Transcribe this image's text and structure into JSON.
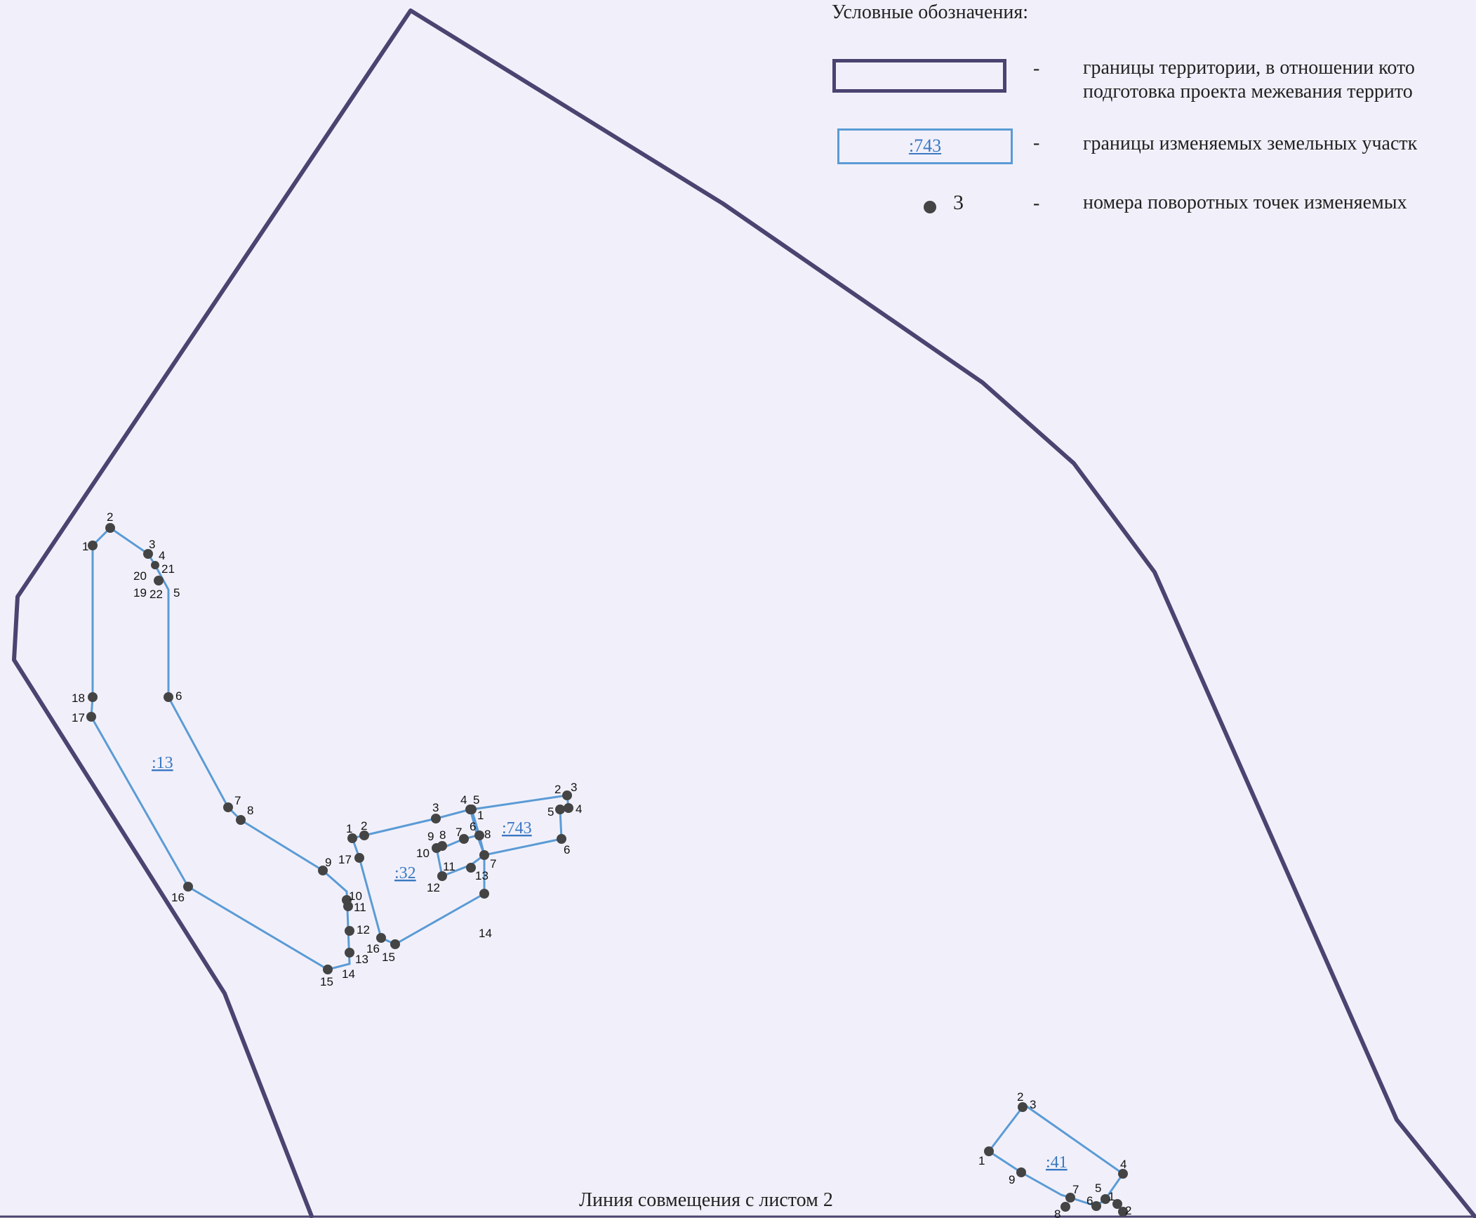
{
  "legend": {
    "title": "Условные обозначения:",
    "dash": "-",
    "item_border_line1": "границы территории, в отношении кото",
    "item_border_line2": "подготовка проекта межевания террито",
    "item_parcel_sample": ":743",
    "item_parcel_text": "границы изменяемых земельных участк",
    "item_point_sample": "3",
    "item_point_text": "номера поворотных точек изменяемых"
  },
  "sheet_line_label": "Линия совмещения с листом 2",
  "colors": {
    "territory": "#4b4370",
    "parcel": "#5b9bd5",
    "point": "#444444",
    "background": "#f1f0fa"
  },
  "icons": {
    "point_marker": "filled-circle"
  },
  "parcels": [
    {
      "id": ":13",
      "label": ":13",
      "points": [
        "1",
        "2",
        "3",
        "4",
        "21",
        "20",
        "19",
        "22",
        "5",
        "6",
        "7",
        "8",
        "9",
        "10",
        "11",
        "12",
        "13",
        "14",
        "15",
        "16",
        "17",
        "18"
      ]
    },
    {
      "id": ":32",
      "label": ":32",
      "points": [
        "1",
        "2",
        "3",
        "4",
        "5",
        "6",
        "7",
        "8",
        "9",
        "10",
        "11",
        "12",
        "13",
        "14",
        "15",
        "16",
        "17"
      ]
    },
    {
      "id": ":743",
      "label": ":743",
      "points": [
        "1",
        "2",
        "3",
        "4",
        "5",
        "6",
        "7",
        "8"
      ]
    },
    {
      "id": ":41",
      "label": ":41",
      "points": [
        "1",
        "2",
        "3",
        "4",
        "5",
        "6",
        "7",
        "8",
        "9"
      ]
    }
  ]
}
